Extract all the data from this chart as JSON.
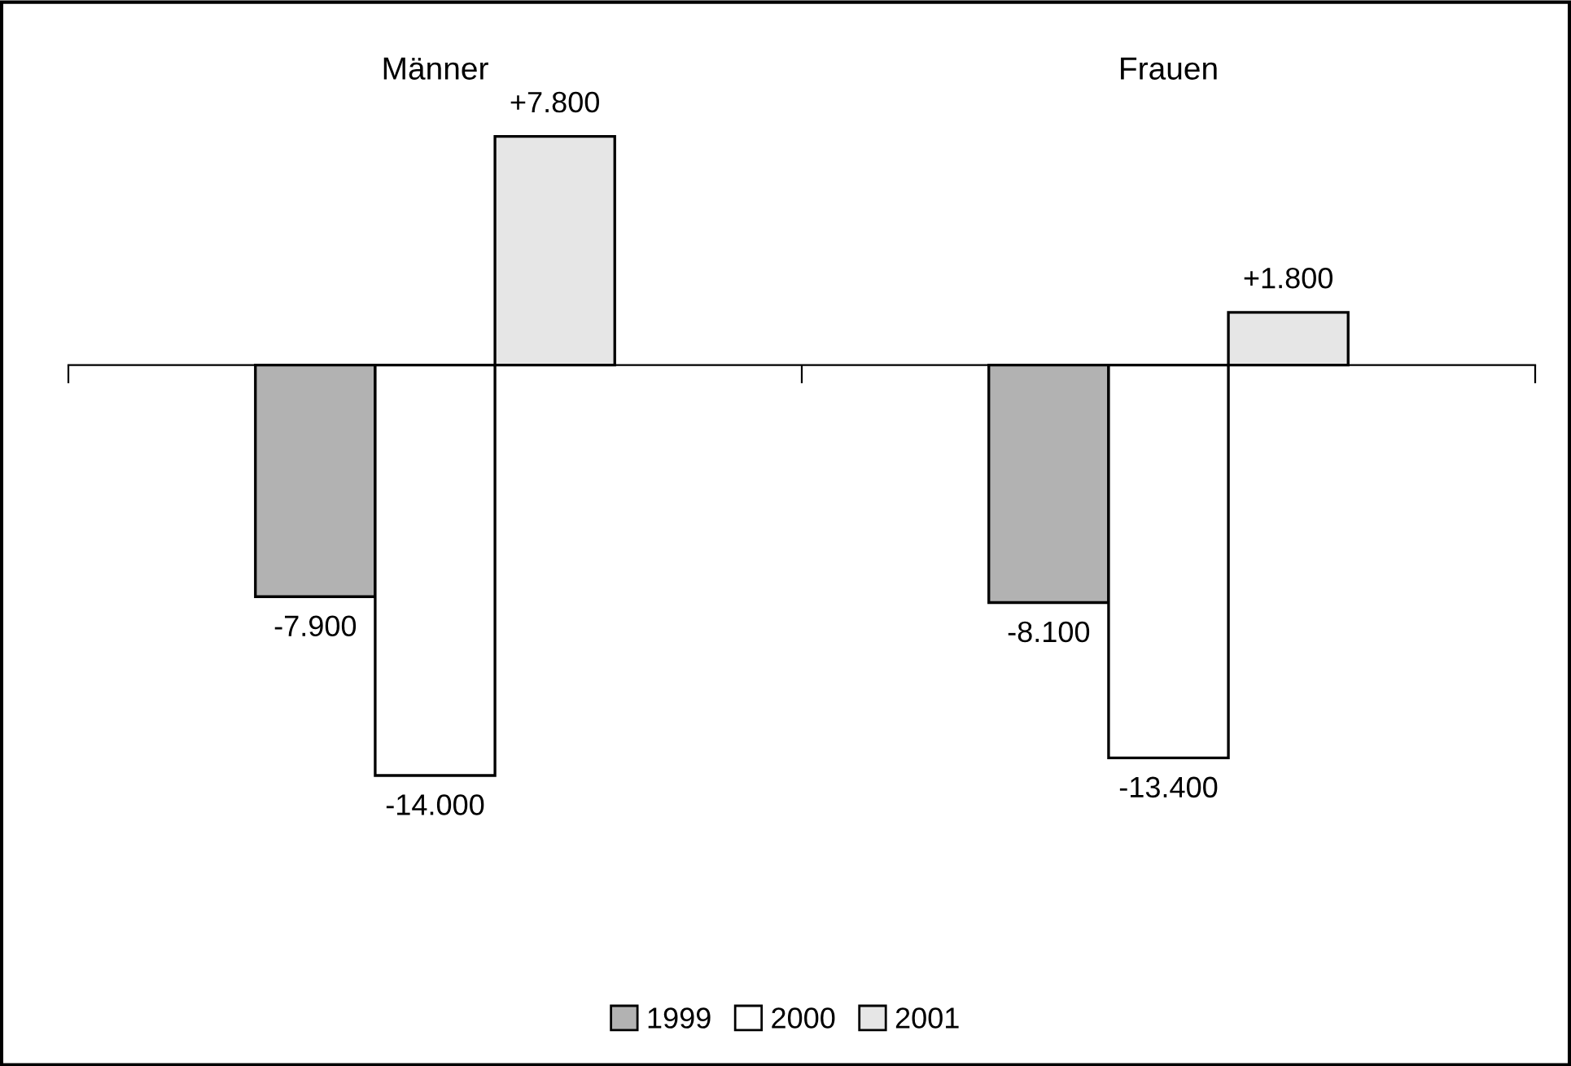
{
  "chart_data": {
    "type": "bar",
    "categories": [
      "Männer",
      "Frauen"
    ],
    "series": [
      {
        "name": "1999",
        "color": "#b2b2b2",
        "values": [
          -7.9,
          -8.1
        ],
        "value_labels": [
          "-7.900",
          "-8.100"
        ]
      },
      {
        "name": "2000",
        "color": "#ffffff",
        "values": [
          -14.0,
          -13.4
        ],
        "value_labels": [
          "-14.000",
          "-13.400"
        ]
      },
      {
        "name": "2001",
        "color": "#e6e6e6",
        "values": [
          7.8,
          1.8
        ],
        "value_labels": [
          "+7.800",
          "+1.800"
        ]
      }
    ],
    "relative": false,
    "legend": "bottom",
    "grid": false
  }
}
